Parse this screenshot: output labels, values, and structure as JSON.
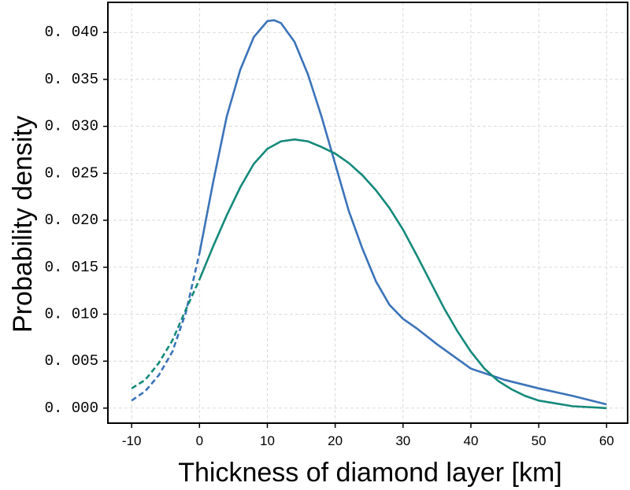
{
  "chart_data": {
    "type": "line",
    "xlabel": "Thickness of diamond layer [km]",
    "ylabel": "Probability density",
    "xlim": [
      -13.5,
      63.1
    ],
    "ylim": [
      -0.0016,
      0.0432
    ],
    "xticks": [
      -10,
      0,
      10,
      20,
      30,
      40,
      50,
      60
    ],
    "yticks": [
      {
        "value": 0,
        "label": "0. 000"
      },
      {
        "value": 0.005,
        "label": "0. 005"
      },
      {
        "value": 0.01,
        "label": "0. 010"
      },
      {
        "value": 0.015,
        "label": "0. 015"
      },
      {
        "value": 0.02,
        "label": "0. 020"
      },
      {
        "value": 0.025,
        "label": "0. 025"
      },
      {
        "value": 0.03,
        "label": "0. 030"
      },
      {
        "value": 0.035,
        "label": "0. 035"
      },
      {
        "value": 0.04,
        "label": "0. 040"
      }
    ],
    "grid": true,
    "series": [
      {
        "color": "#3b73b9",
        "style": "solid",
        "x": [
          0,
          2,
          4,
          6,
          8,
          10,
          11,
          12,
          14,
          16,
          18,
          20,
          22,
          24,
          26,
          28,
          30,
          32,
          35,
          40,
          45,
          50,
          55,
          60
        ],
        "values": [
          0.0165,
          0.024,
          0.031,
          0.036,
          0.0395,
          0.0412,
          0.0413,
          0.041,
          0.039,
          0.0355,
          0.031,
          0.026,
          0.021,
          0.017,
          0.0135,
          0.011,
          0.0095,
          0.0085,
          0.0068,
          0.0042,
          0.003,
          0.0021,
          0.0013,
          0.0004
        ]
      },
      {
        "color": "#3b73b9",
        "style": "dashed",
        "x": [
          -10,
          -8,
          -6,
          -4,
          -2,
          0
        ],
        "values": [
          0.0008,
          0.0018,
          0.0035,
          0.006,
          0.0102,
          0.0165
        ]
      },
      {
        "color": "#15897a",
        "style": "solid",
        "x": [
          0,
          2,
          4,
          6,
          8,
          10,
          12,
          14,
          16,
          18,
          20,
          22,
          24,
          26,
          28,
          30,
          32,
          34,
          36,
          38,
          40,
          42,
          44,
          46,
          48,
          50,
          55,
          60
        ],
        "values": [
          0.0137,
          0.0172,
          0.0205,
          0.0235,
          0.026,
          0.0276,
          0.0284,
          0.0286,
          0.0284,
          0.0278,
          0.0271,
          0.0261,
          0.0248,
          0.0232,
          0.0213,
          0.019,
          0.0163,
          0.0135,
          0.0107,
          0.0082,
          0.006,
          0.0042,
          0.0029,
          0.002,
          0.0013,
          0.0008,
          0.0002,
          0
        ]
      },
      {
        "color": "#15897a",
        "style": "dashed",
        "x": [
          -10,
          -8,
          -6,
          -4,
          -2,
          0
        ],
        "values": [
          0.0021,
          0.003,
          0.0048,
          0.0072,
          0.0105,
          0.0137
        ]
      }
    ]
  }
}
